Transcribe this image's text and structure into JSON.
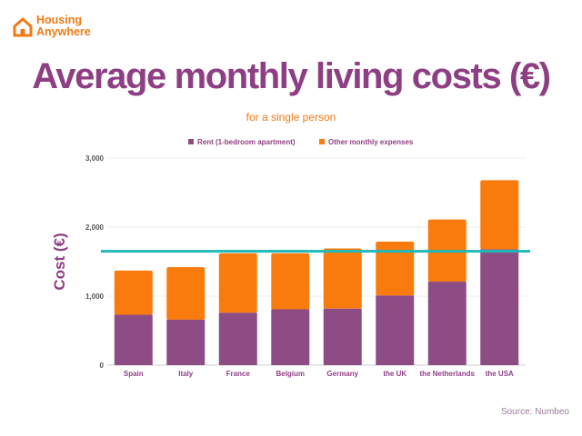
{
  "brand": {
    "line1": "Housing",
    "line2": "Anywhere",
    "icon": "house-icon"
  },
  "title": "Average monthly living costs (€)",
  "subtitle": "for a single person",
  "source": "Source: Numbeo",
  "colors": {
    "rent": "#8e4c85",
    "other": "#f97b0d",
    "average": "#1fb8b8",
    "title": "#8e3f84",
    "accent": "#f07a14"
  },
  "chart_data": {
    "type": "bar",
    "stacked": true,
    "categories": [
      "Spain",
      "Italy",
      "France",
      "Belgium",
      "Germany",
      "the UK",
      "the Netherlands",
      "the USA"
    ],
    "series": [
      {
        "name": "Rent (1-bedroom apartment)",
        "values": [
          730,
          660,
          760,
          810,
          820,
          1010,
          1210,
          1680
        ]
      },
      {
        "name": "Other monthly expenses",
        "values": [
          640,
          760,
          860,
          810,
          870,
          780,
          900,
          1000
        ]
      }
    ],
    "reference_line": {
      "value": 1650
    },
    "ylabel": "Cost (€)",
    "xlabel": "",
    "ylim": [
      0,
      3000
    ],
    "yticks": [
      0,
      1000,
      2000,
      3000
    ],
    "ytick_labels": [
      "0",
      "1,000",
      "2,000",
      "3,000"
    ],
    "legend": "top-center",
    "grid": true
  }
}
